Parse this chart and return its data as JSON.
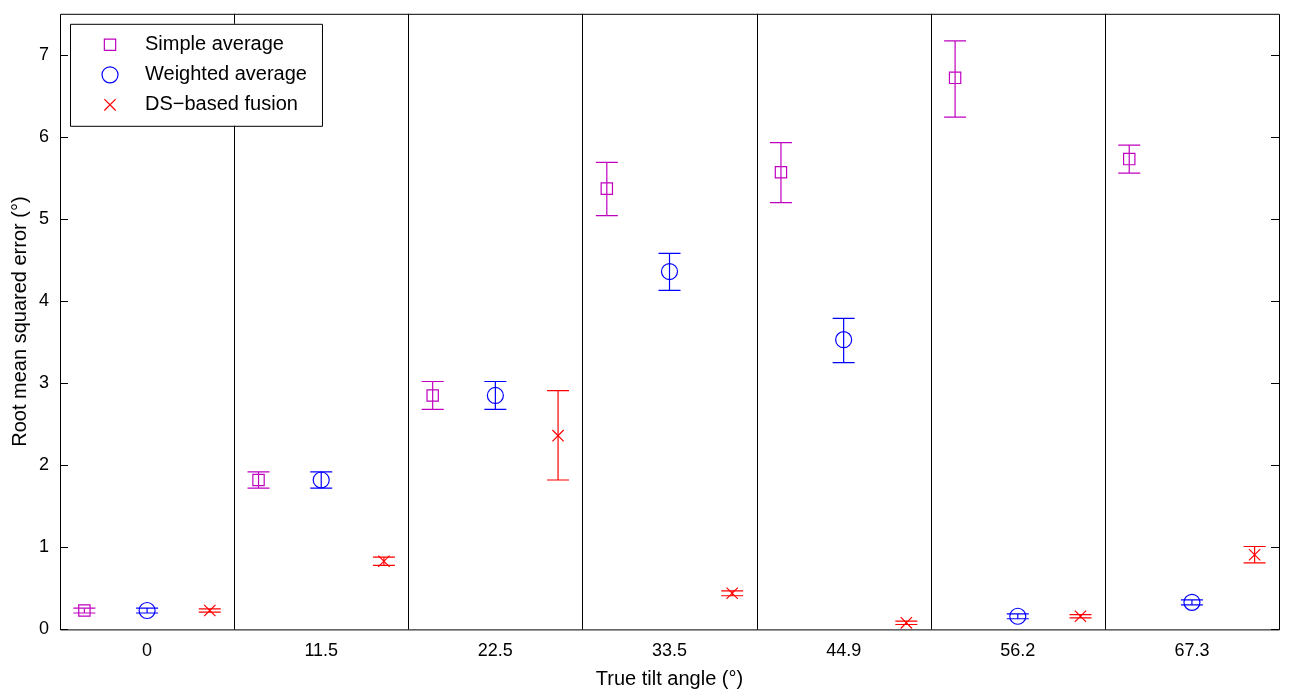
{
  "chart_data": {
    "type": "scatter",
    "xlabel": "True tilt angle (°)",
    "ylabel": "Root mean squared error (°)",
    "categories": [
      "0",
      "11.5",
      "22.5",
      "33.5",
      "44.9",
      "56.2",
      "67.3"
    ],
    "ylim": [
      0,
      7.5
    ],
    "yticks": [
      0,
      1,
      2,
      3,
      4,
      5,
      6,
      7
    ],
    "grid": "x",
    "legend": "top left",
    "series": [
      {
        "name": "Simple average",
        "color": "#bf00bf",
        "marker": "square",
        "values": [
          0.23,
          1.82,
          2.85,
          5.37,
          5.57,
          6.72,
          5.73
        ],
        "errors": [
          0.03,
          0.1,
          0.17,
          [
            5.04,
            5.69
          ],
          [
            5.2,
            5.93
          ],
          [
            6.24,
            7.17
          ],
          0.17
        ]
      },
      {
        "name": "Weighted average",
        "color": "#0000ff",
        "marker": "circle",
        "values": [
          0.23,
          1.82,
          2.85,
          4.36,
          3.53,
          0.16,
          0.33
        ],
        "errors": [
          0.03,
          0.1,
          0.17,
          [
            4.13,
            4.58
          ],
          [
            3.25,
            3.79
          ],
          0.03,
          0.03
        ]
      },
      {
        "name": "DS−based fusion",
        "color": "#ff0000",
        "marker": "cross",
        "values": [
          0.23,
          0.83,
          2.36,
          0.44,
          0.08,
          0.16,
          0.91
        ],
        "errors": [
          0.02,
          0.05,
          [
            1.82,
            2.91
          ],
          0.03,
          0.02,
          0.02,
          0.1
        ]
      }
    ]
  }
}
